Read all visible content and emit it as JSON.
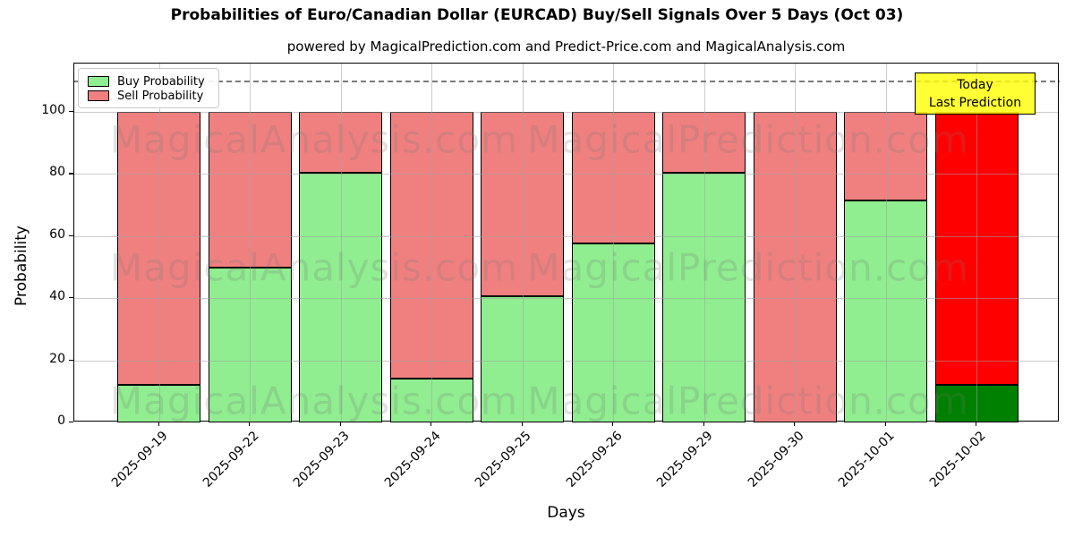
{
  "chart_data": {
    "type": "bar",
    "stacked": true,
    "title": "Probabilities of Euro/Canadian Dollar (EURCAD) Buy/Sell Signals Over 5 Days (Oct 03)",
    "subtitle": "powered by MagicalPrediction.com and Predict-Price.com and MagicalAnalysis.com",
    "xlabel": "Days",
    "ylabel": "Probability",
    "categories": [
      "2025-09-19",
      "2025-09-22",
      "2025-09-23",
      "2025-09-24",
      "2025-09-25",
      "2025-09-26",
      "2025-09-29",
      "2025-09-30",
      "2025-10-01",
      "2025-10-02"
    ],
    "series": [
      {
        "name": "Buy Probability",
        "values": [
          12,
          50,
          80.5,
          14,
          40.5,
          57.5,
          80.5,
          0,
          71.5,
          12
        ]
      },
      {
        "name": "Sell Probability",
        "values": [
          88,
          50,
          19.5,
          86,
          59.5,
          42.5,
          19.5,
          100,
          28.5,
          88
        ]
      }
    ],
    "today_index": 9,
    "yticks": [
      0,
      20,
      40,
      60,
      80,
      100
    ],
    "ylim": [
      0,
      115.4
    ],
    "dashed_line_y": 110,
    "grid": true,
    "legend_position": "upper-left",
    "colors": {
      "buy": "#90ee90",
      "sell": "#f08080",
      "today_buy": "#008000",
      "today_sell": "#ff0000",
      "bar_edge": "#000000",
      "grid": "#b0b0b0",
      "dashed_line": "#7a7a7a",
      "annotation_bg": "#ffff00",
      "annotation_border": "#000000"
    },
    "annotation": {
      "line1": "Today",
      "line2": "Last Prediction"
    },
    "watermarks": [
      "MagicalAnalysis.com",
      "MagicalPrediction.com"
    ]
  }
}
